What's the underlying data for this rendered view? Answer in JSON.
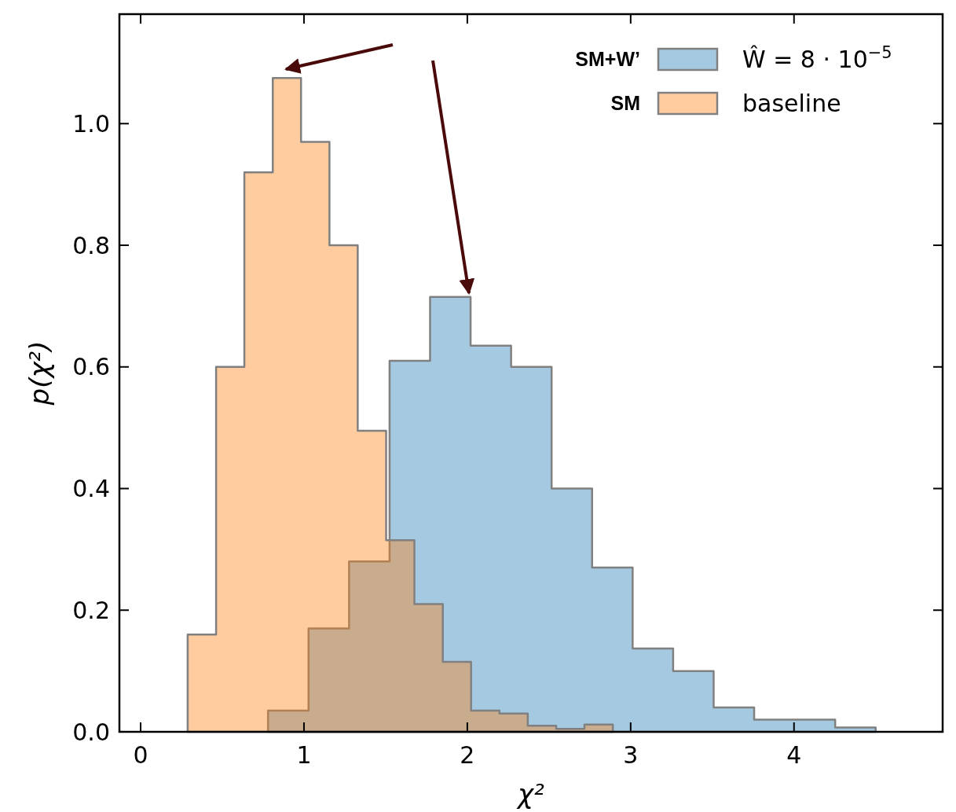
{
  "chart_data": {
    "type": "area",
    "xlabel": "χ²",
    "ylabel": "p(χ²)",
    "xlim": [
      -0.13,
      4.91
    ],
    "ylim": [
      0,
      1.18
    ],
    "xticks": [
      0,
      1,
      2,
      3,
      4
    ],
    "yticks": [
      {
        "value": 0,
        "label": "0.0"
      },
      {
        "value": 0.2,
        "label": "0.2"
      },
      {
        "value": 0.4,
        "label": "0.4"
      },
      {
        "value": 0.6,
        "label": "0.6"
      },
      {
        "value": 0.8,
        "label": "0.8"
      },
      {
        "value": 1.0,
        "label": "1.0"
      }
    ],
    "grid": false,
    "legend": "top right",
    "annotations": [
      "SM+W’",
      "SM"
    ],
    "series": [
      {
        "name": "Ŵ = 8 · 10$^{−5}$",
        "color": "#1f77b4",
        "x": [
          0.78,
          0.78,
          1.028,
          1.028,
          1.276,
          1.276,
          1.524,
          1.524,
          1.772,
          1.772,
          2.02,
          2.02,
          2.268,
          2.268,
          2.516,
          2.516,
          2.764,
          2.764,
          3.012,
          3.012,
          3.26,
          3.26,
          3.508,
          3.508,
          3.756,
          3.756,
          4.004,
          4.004,
          4.252,
          4.252,
          4.5,
          4.5
        ],
        "values": [
          0,
          0.035,
          0.035,
          0.17,
          0.17,
          0.28,
          0.28,
          0.61,
          0.61,
          0.715,
          0.715,
          0.635,
          0.635,
          0.6,
          0.6,
          0.4,
          0.4,
          0.27,
          0.27,
          0.137,
          0.137,
          0.1,
          0.1,
          0.04,
          0.04,
          0.02,
          0.02,
          0.02,
          0.02,
          0.007,
          0.007,
          0
        ]
      },
      {
        "name": "baseline",
        "color": "#ff7f0e",
        "x": [
          0.288,
          0.288,
          0.462,
          0.462,
          0.635,
          0.635,
          0.809,
          0.809,
          0.982,
          0.982,
          1.156,
          1.156,
          1.329,
          1.329,
          1.503,
          1.503,
          1.676,
          1.676,
          1.85,
          1.85,
          2.023,
          2.023,
          2.197,
          2.197,
          2.37,
          2.37,
          2.544,
          2.544,
          2.717,
          2.717,
          2.891,
          2.891
        ],
        "values": [
          0,
          0.16,
          0.16,
          0.6,
          0.6,
          0.92,
          0.92,
          1.075,
          1.075,
          0.97,
          0.97,
          0.8,
          0.8,
          0.495,
          0.495,
          0.315,
          0.315,
          0.21,
          0.21,
          0.115,
          0.115,
          0.035,
          0.035,
          0.03,
          0.03,
          0.01,
          0.01,
          0.005,
          0.005,
          0.012,
          0.012,
          0
        ]
      }
    ]
  }
}
